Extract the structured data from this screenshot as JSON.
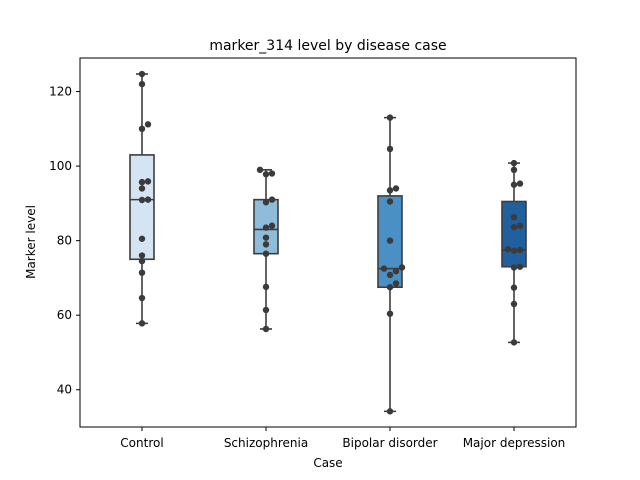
{
  "chart_data": {
    "type": "box",
    "title": "marker_314 level by disease case",
    "xlabel": "Case",
    "ylabel": "Marker level",
    "ylim": [
      30,
      129
    ],
    "yticks": [
      40,
      60,
      80,
      100,
      120
    ],
    "grid": false,
    "categories": [
      "Control",
      "Schizophrenia",
      "Bipolar disorder",
      "Major depression"
    ],
    "box_colors": [
      "#d4e4f3",
      "#8fbcdb",
      "#4a90c4",
      "#21609e"
    ],
    "boxes": [
      {
        "category": "Control",
        "whisker_low": 57.8,
        "q1": 75.0,
        "median": 91.0,
        "q3": 103.0,
        "whisker_high": 124.7
      },
      {
        "category": "Schizophrenia",
        "whisker_low": 56.3,
        "q1": 76.5,
        "median": 83.0,
        "q3": 91.0,
        "whisker_high": 99.0
      },
      {
        "category": "Bipolar disorder",
        "whisker_low": 34.2,
        "q1": 67.5,
        "median": 72.5,
        "q3": 92.0,
        "whisker_high": 113.0
      },
      {
        "category": "Major depression",
        "whisker_low": 52.7,
        "q1": 73.0,
        "median": 77.5,
        "q3": 90.5,
        "whisker_high": 100.8
      }
    ],
    "points": [
      {
        "category": "Control",
        "values": [
          124.7,
          122.0,
          111.2,
          110.0,
          95.7,
          95.9,
          94.0,
          91.0,
          90.9,
          80.5,
          76.0,
          74.5,
          71.4,
          64.6,
          57.8
        ]
      },
      {
        "category": "Schizophrenia",
        "values": [
          99.0,
          98.0,
          97.8,
          91.0,
          90.3,
          84.0,
          83.5,
          80.8,
          79.0,
          76.5,
          67.6,
          61.4,
          56.3
        ]
      },
      {
        "category": "Bipolar disorder",
        "values": [
          113.0,
          104.6,
          94.0,
          93.5,
          90.5,
          80.0,
          72.8,
          72.5,
          71.8,
          70.8,
          68.5,
          67.5,
          60.4,
          34.2
        ]
      },
      {
        "category": "Major depression",
        "values": [
          100.8,
          99.0,
          95.3,
          95.0,
          86.3,
          84.0,
          83.6,
          77.7,
          77.5,
          77.3,
          73.0,
          72.8,
          67.4,
          63.0,
          52.7
        ]
      }
    ]
  }
}
